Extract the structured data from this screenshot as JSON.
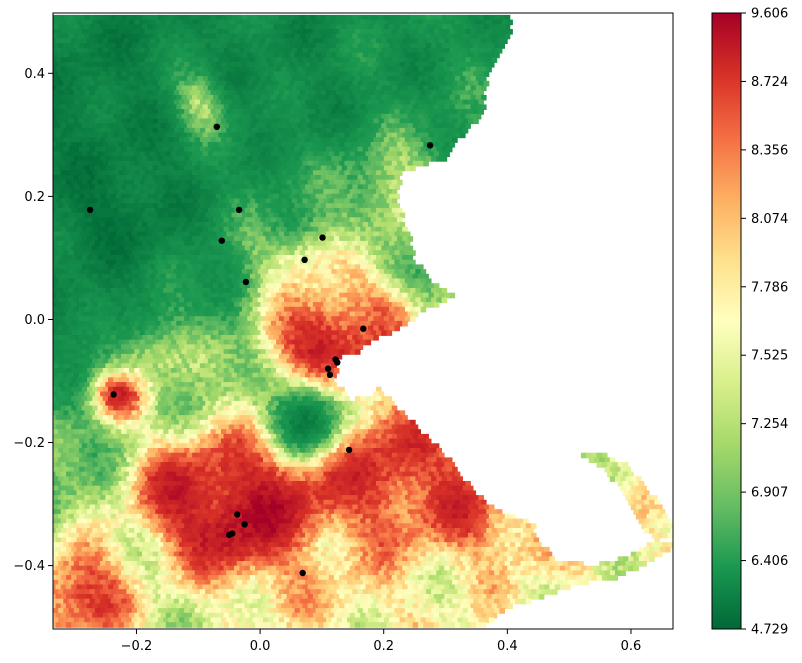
{
  "chart_data": {
    "type": "heatmap",
    "title": "",
    "xlabel": "",
    "ylabel": "",
    "xlim": [
      -0.335,
      0.668
    ],
    "ylim": [
      -0.503,
      0.498
    ],
    "x_ticks": [
      -0.2,
      0.0,
      0.2,
      0.4,
      0.6
    ],
    "x_tick_labels": [
      "−0.2",
      "0.0",
      "0.2",
      "0.4",
      "0.6"
    ],
    "y_ticks": [
      -0.4,
      -0.2,
      0.0,
      0.2,
      0.4
    ],
    "y_tick_labels": [
      "−0.4",
      "−0.2",
      "0.0",
      "0.2",
      "0.4"
    ],
    "colorbar": {
      "min": 4.729,
      "max": 9.606,
      "ticks": [
        4.729,
        6.406,
        6.907,
        7.254,
        7.525,
        7.786,
        8.074,
        8.356,
        8.724,
        9.606
      ],
      "tick_labels": [
        "4.729",
        "6.406",
        "6.907",
        "7.254",
        "7.525",
        "7.786",
        "8.074",
        "8.356",
        "8.724",
        "9.606"
      ],
      "colormap": "RdYlGn_r",
      "colors": [
        "#006837",
        "#1a9850",
        "#66bd63",
        "#a6d96a",
        "#d9ef8b",
        "#ffffbf",
        "#fee08b",
        "#fdae61",
        "#f46d43",
        "#d73027",
        "#a50026"
      ]
    },
    "markers": [
      {
        "x": -0.07,
        "y": 0.313
      },
      {
        "x": 0.275,
        "y": 0.283
      },
      {
        "x": -0.275,
        "y": 0.178
      },
      {
        "x": -0.034,
        "y": 0.178
      },
      {
        "x": -0.062,
        "y": 0.128
      },
      {
        "x": 0.101,
        "y": 0.133
      },
      {
        "x": 0.072,
        "y": 0.097
      },
      {
        "x": -0.023,
        "y": 0.061
      },
      {
        "x": 0.167,
        "y": -0.015
      },
      {
        "x": 0.122,
        "y": -0.065
      },
      {
        "x": 0.125,
        "y": -0.07
      },
      {
        "x": 0.11,
        "y": -0.08
      },
      {
        "x": 0.113,
        "y": -0.09
      },
      {
        "x": -0.237,
        "y": -0.122
      },
      {
        "x": 0.144,
        "y": -0.212
      },
      {
        "x": -0.037,
        "y": -0.317
      },
      {
        "x": -0.025,
        "y": -0.333
      },
      {
        "x": -0.045,
        "y": -0.348
      },
      {
        "x": -0.05,
        "y": -0.35
      },
      {
        "x": 0.069,
        "y": -0.412
      }
    ],
    "regions": [
      {
        "shape": "land",
        "note": "mainland",
        "boundary": [
          [
            -0.335,
            0.498
          ],
          [
            0.405,
            0.498
          ],
          [
            0.405,
            0.46
          ],
          [
            0.37,
            0.4
          ],
          [
            0.36,
            0.33
          ],
          [
            0.33,
            0.3
          ],
          [
            0.3,
            0.26
          ],
          [
            0.23,
            0.24
          ],
          [
            0.22,
            0.19
          ],
          [
            0.24,
            0.15
          ],
          [
            0.25,
            0.1
          ],
          [
            0.28,
            0.06
          ],
          [
            0.32,
            0.04
          ],
          [
            0.26,
            0.01
          ],
          [
            0.22,
            -0.02
          ],
          [
            0.17,
            -0.04
          ],
          [
            0.16,
            -0.08
          ],
          [
            0.2,
            -0.12
          ],
          [
            0.24,
            -0.16
          ],
          [
            0.3,
            -0.22
          ],
          [
            0.34,
            -0.27
          ],
          [
            0.38,
            -0.31
          ],
          [
            0.44,
            -0.33
          ],
          [
            0.46,
            -0.37
          ],
          [
            0.48,
            -0.39
          ],
          [
            0.54,
            -0.4
          ],
          [
            0.58,
            -0.39
          ],
          [
            0.62,
            -0.37
          ],
          [
            0.64,
            -0.36
          ],
          [
            0.66,
            -0.36
          ],
          [
            0.668,
            -0.37
          ],
          [
            0.64,
            -0.39
          ],
          [
            0.58,
            -0.42
          ],
          [
            0.52,
            -0.43
          ],
          [
            0.46,
            -0.45
          ],
          [
            0.4,
            -0.47
          ],
          [
            0.36,
            -0.503
          ],
          [
            -0.335,
            -0.503
          ]
        ]
      },
      {
        "shape": "land",
        "note": "cape",
        "boundary": [
          [
            0.52,
            -0.22
          ],
          [
            0.56,
            -0.22
          ],
          [
            0.6,
            -0.24
          ],
          [
            0.62,
            -0.27
          ],
          [
            0.64,
            -0.29
          ],
          [
            0.66,
            -0.32
          ],
          [
            0.668,
            -0.35
          ],
          [
            0.64,
            -0.36
          ],
          [
            0.62,
            -0.34
          ],
          [
            0.6,
            -0.3
          ],
          [
            0.58,
            -0.27
          ],
          [
            0.55,
            -0.24
          ]
        ]
      },
      {
        "shape": "water",
        "note": "harbor",
        "boundary": [
          [
            0.13,
            -0.06
          ],
          [
            0.17,
            -0.05
          ],
          [
            0.2,
            -0.08
          ],
          [
            0.19,
            -0.12
          ],
          [
            0.15,
            -0.13
          ],
          [
            0.12,
            -0.1
          ]
        ]
      }
    ],
    "hotspots": [
      {
        "x": 0.11,
        "y": -0.04,
        "radius": 0.1,
        "value": 9.45
      },
      {
        "x": 0.03,
        "y": -0.3,
        "radius": 0.14,
        "value": 9.2
      },
      {
        "x": -0.12,
        "y": -0.28,
        "radius": 0.1,
        "value": 8.9
      },
      {
        "x": 0.22,
        "y": -0.24,
        "radius": 0.14,
        "value": 8.9
      },
      {
        "x": 0.33,
        "y": -0.3,
        "radius": 0.08,
        "value": 8.7
      },
      {
        "x": -0.05,
        "y": -0.33,
        "radius": 0.07,
        "value": 9.4
      },
      {
        "x": -0.29,
        "y": -0.45,
        "radius": 0.09,
        "value": 8.9
      },
      {
        "x": 0.07,
        "y": 0.1,
        "radius": 0.07,
        "value": 8.1
      },
      {
        "x": -0.23,
        "y": -0.12,
        "radius": 0.045,
        "value": 9.0
      },
      {
        "x": -0.095,
        "y": 0.35,
        "radius": 0.05,
        "value": 8.4
      },
      {
        "x": 0.2,
        "y": 0.01,
        "radius": 0.06,
        "value": 8.4
      },
      {
        "x": 0.43,
        "y": -0.34,
        "radius": 0.06,
        "value": 8.3
      },
      {
        "x": 0.12,
        "y": -0.43,
        "radius": 0.09,
        "value": 7.9
      },
      {
        "x": -0.18,
        "y": -0.05,
        "radius": 0.06,
        "value": 7.7
      },
      {
        "x": 0.22,
        "y": 0.2,
        "radius": 0.09,
        "value": 7.5
      }
    ],
    "coldspots": [
      {
        "x": 0.075,
        "y": -0.16,
        "radius": 0.06,
        "value": 5.3
      },
      {
        "x": -0.24,
        "y": 0.18,
        "radius": 0.14,
        "value": 5.1
      },
      {
        "x": -0.28,
        "y": 0.35,
        "radius": 0.12,
        "value": 5.4
      },
      {
        "x": 0.04,
        "y": 0.38,
        "radius": 0.13,
        "value": 5.7
      },
      {
        "x": 0.25,
        "y": 0.42,
        "radius": 0.09,
        "value": 6.0
      },
      {
        "x": -0.28,
        "y": 0.02,
        "radius": 0.08,
        "value": 5.6
      },
      {
        "x": 0.03,
        "y": 0.2,
        "radius": 0.07,
        "value": 6.3
      }
    ]
  }
}
